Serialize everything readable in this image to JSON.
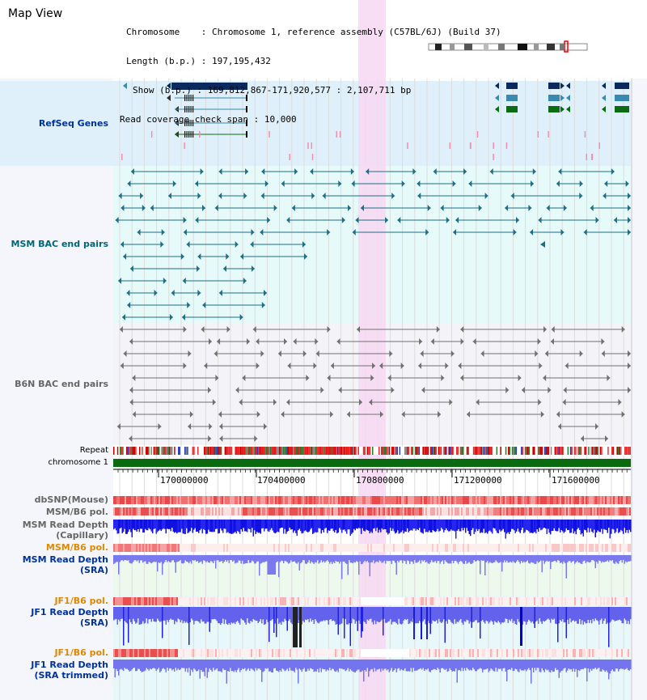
{
  "app": {
    "title": "Map View"
  },
  "info": {
    "chromosome_key": "Chromosome",
    "chromosome_val": "Chromosome 1, reference assembly (C57BL/6J) (Build 37)",
    "length_key": "Length (b.p.)",
    "length_val": "197,195,432",
    "show_key": "Show (b.p.)",
    "show_val": "169,812,867-171,920,577 : 2,107,711 bp",
    "span_key": "Read coverage check span",
    "span_val": "10,000"
  },
  "tracks": {
    "refseq": "RefSeq Genes",
    "msm_bac": "MSM BAC end pairs",
    "b6n_bac": "B6N BAC end pairs",
    "repeat": "Repeat",
    "chromosome": "chromosome 1",
    "dbsnp": "dbSNP(Mouse)",
    "msm_b6_pol_1": "MSM/B6 pol.",
    "msm_read_depth_cap_1": "MSM Read Depth",
    "msm_read_depth_cap_2": "(Capillary)",
    "msm_b6_pol_2": "MSM/B6 pol.",
    "msm_read_depth_sra_1": "MSM Read Depth",
    "msm_read_depth_sra_2": "(SRA)",
    "jf1_b6_pol_1": "JF1/B6 pol.",
    "jf1_read_depth_sra_1": "JF1 Read Depth",
    "jf1_read_depth_sra_2": "(SRA)",
    "jf1_b6_pol_2": "JF1/B6 pol.",
    "jf1_read_depth_trim_1": "JF1 Read Depth",
    "jf1_read_depth_trim_2": "(SRA trimmed)"
  },
  "ruler": {
    "ticks": [
      "170000000",
      "170400000",
      "170800000",
      "171200000",
      "171600000"
    ]
  },
  "colors": {
    "refseq_bg": "#dff0fa",
    "msm_bg": "#e6fafa",
    "b6n_bg": "#f4f4f8",
    "highlight": "#f7d8f2",
    "gene_dark": "#0a2a5e",
    "gene_teal": "#3a8ab0",
    "gene_green": "#0b6b14",
    "msm_line": "#1f6d86",
    "b6n_line": "#707070",
    "chrom_bar": "#0a6a10",
    "dbsnp": "#f07070",
    "depth_blue": "#1010e0",
    "depth_light": "#7a7aee",
    "label_blue": "#003399",
    "label_teal": "#006677",
    "label_gray": "#666666",
    "label_orange": "#e08800"
  }
}
